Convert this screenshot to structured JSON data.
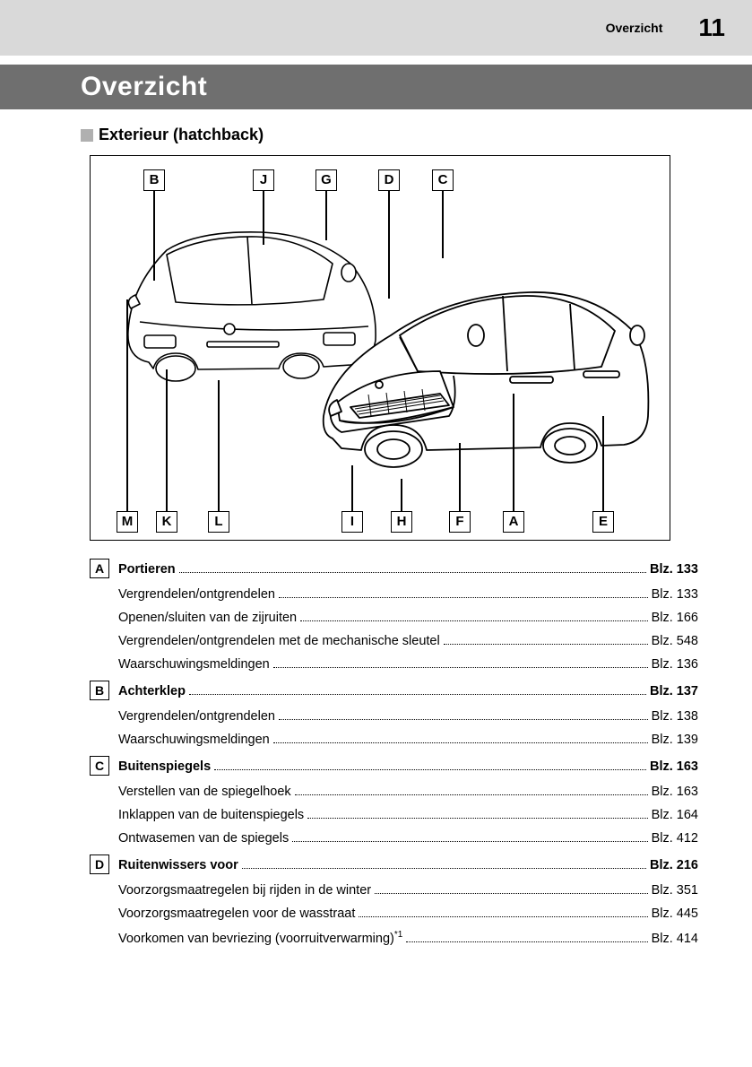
{
  "header": {
    "section": "Overzicht",
    "page_number": "11"
  },
  "title": "Overzicht",
  "subtitle": "Exterieur (hatchback)",
  "diagram": {
    "top_labels": [
      "B",
      "J",
      "G",
      "D",
      "C"
    ],
    "bottom_labels": [
      "M",
      "K",
      "L",
      "I",
      "H",
      "F",
      "A",
      "E"
    ]
  },
  "index": [
    {
      "letter": "A",
      "main": {
        "label": "Portieren",
        "page": "Blz. 133"
      },
      "subs": [
        {
          "label": "Vergrendelen/ontgrendelen",
          "page": "Blz. 133"
        },
        {
          "label": "Openen/sluiten van de zijruiten",
          "page": "Blz. 166"
        },
        {
          "label": "Vergrendelen/ontgrendelen met de mechanische sleutel",
          "page": "Blz. 548"
        },
        {
          "label": "Waarschuwingsmeldingen",
          "page": "Blz. 136"
        }
      ]
    },
    {
      "letter": "B",
      "main": {
        "label": "Achterklep",
        "page": "Blz. 137"
      },
      "subs": [
        {
          "label": "Vergrendelen/ontgrendelen",
          "page": "Blz. 138"
        },
        {
          "label": "Waarschuwingsmeldingen",
          "page": "Blz. 139"
        }
      ]
    },
    {
      "letter": "C",
      "main": {
        "label": "Buitenspiegels",
        "page": "Blz. 163"
      },
      "subs": [
        {
          "label": "Verstellen van de spiegelhoek",
          "page": "Blz. 163"
        },
        {
          "label": "Inklappen van de buitenspiegels",
          "page": "Blz. 164"
        },
        {
          "label": "Ontwasemen van de spiegels",
          "page": "Blz. 412"
        }
      ]
    },
    {
      "letter": "D",
      "main": {
        "label": "Ruitenwissers voor",
        "page": "Blz. 216"
      },
      "subs": [
        {
          "label": "Voorzorgsmaatregelen bij rijden in de winter",
          "page": "Blz. 351"
        },
        {
          "label": "Voorzorgsmaatregelen voor de wasstraat",
          "page": "Blz. 445"
        },
        {
          "label_html": "Voorkomen van bevriezing (voorruitverwarming)<sup>*1</sup>",
          "page": "Blz. 414"
        }
      ]
    }
  ]
}
